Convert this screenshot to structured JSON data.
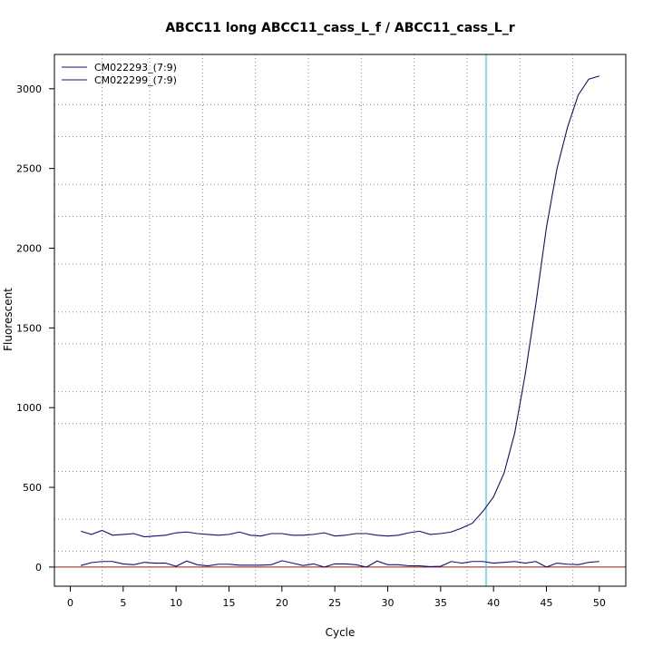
{
  "chart_data": {
    "type": "line",
    "title": "ABCC11 long ABCC11_cass_L_f / ABCC11_cass_L_r",
    "xlabel": "Cycle",
    "ylabel": "Fluorescent",
    "xlim": [
      -1.5,
      52.5
    ],
    "ylim": [
      -120,
      3215
    ],
    "x_ticks": [
      0,
      5,
      10,
      15,
      20,
      25,
      30,
      35,
      40,
      45,
      50
    ],
    "y_ticks": [
      0,
      500,
      1000,
      1500,
      2000,
      2500,
      3000
    ],
    "grid": true,
    "grid_x": [
      3,
      7.5,
      12.5,
      17.5,
      22.5,
      27.5,
      32.5,
      37.5,
      42.5,
      47.5
    ],
    "grid_y": [
      100,
      300,
      600,
      900,
      1100,
      1400,
      1600,
      1900,
      2200,
      2400,
      2700,
      2900
    ],
    "threshold_line": {
      "axis": "y",
      "value": 0,
      "color": "#8b1a1a"
    },
    "cycle_marker": {
      "axis": "x",
      "value": 39.3,
      "color": "#40c8e8"
    },
    "legend_position": "top-left",
    "x": [
      1,
      2,
      3,
      4,
      5,
      6,
      7,
      8,
      9,
      10,
      11,
      12,
      13,
      14,
      15,
      16,
      17,
      18,
      19,
      20,
      21,
      22,
      23,
      24,
      25,
      26,
      27,
      28,
      29,
      30,
      31,
      32,
      33,
      34,
      35,
      36,
      37,
      38,
      39,
      40,
      41,
      42,
      43,
      44,
      45,
      46,
      47,
      48,
      49,
      50
    ],
    "series": [
      {
        "name": "CM022293_(7:9)",
        "color": "#101070",
        "values": [
          225,
          205,
          230,
          200,
          205,
          210,
          190,
          195,
          200,
          215,
          220,
          210,
          205,
          200,
          205,
          220,
          200,
          195,
          210,
          210,
          200,
          200,
          205,
          215,
          195,
          200,
          210,
          210,
          200,
          195,
          200,
          215,
          225,
          205,
          210,
          220,
          245,
          275,
          350,
          440,
          590,
          840,
          1210,
          1650,
          2130,
          2500,
          2760,
          2960,
          3060,
          3080
        ]
      },
      {
        "name": "CM022299_(7:9)",
        "color": "#101070",
        "values": [
          10,
          28,
          35,
          35,
          20,
          15,
          30,
          25,
          25,
          5,
          38,
          15,
          8,
          18,
          18,
          12,
          12,
          12,
          15,
          40,
          25,
          10,
          20,
          0,
          20,
          20,
          15,
          0,
          38,
          15,
          15,
          8,
          8,
          3,
          5,
          35,
          25,
          35,
          35,
          25,
          30,
          35,
          25,
          35,
          0,
          25,
          18,
          15,
          30,
          35
        ]
      }
    ]
  }
}
